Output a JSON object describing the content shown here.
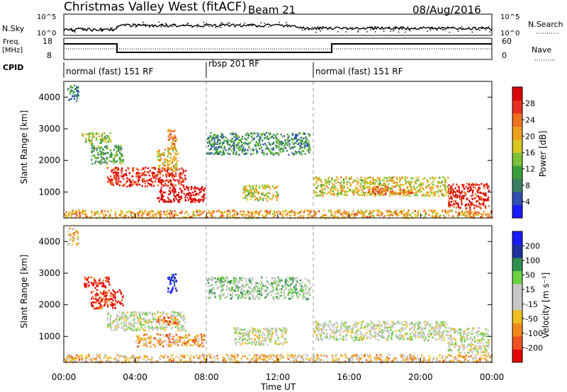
{
  "header": {
    "title": "Christmas Valley West (fitACF)",
    "beam": "Beam 21",
    "date": "08/Aug/2016"
  },
  "strip": {
    "nsky_label": "N.Sky",
    "nsky_top_tick": "10^5",
    "nsky_bottom_tick": "10^0",
    "nsearch_label": "N.Search",
    "right_top_tick": "10^5",
    "right_bottom_tick": "10^0",
    "freq_label": "Freq.",
    "freq_unit": "[MHz]",
    "freq_ticks": [
      "18",
      "8"
    ],
    "nave_label": "Nave",
    "nave_ticks": [
      "60",
      "0"
    ],
    "cpid_label": "CPID",
    "cpid_segments": [
      {
        "label": "normal (fast) 151 RF",
        "start_h": 0,
        "end_h": 8
      },
      {
        "label": "rbsp 201 RF",
        "start_h": 8,
        "end_h": 14
      },
      {
        "label": "normal (fast) 151 RF",
        "start_h": 14,
        "end_h": 24
      }
    ]
  },
  "chart_data": [
    {
      "type": "heatmap",
      "parameter": "Power",
      "ylabel": "Slant Range [km]",
      "yticks": [
        1000,
        2000,
        3000,
        4000
      ],
      "ylim": [
        180,
        4500
      ],
      "xlim_hours": [
        0,
        24
      ],
      "colorbar_label": "Power [dB]",
      "colorbar_ticks": [
        "4",
        "8",
        "12",
        "16",
        "20",
        "24",
        "28"
      ],
      "colorbar_colors": [
        "#1a1aff",
        "#2f4fb0",
        "#3a7f62",
        "#3a9f3a",
        "#7ec23a",
        "#d8c81f",
        "#f0a020",
        "#f07020",
        "#e83020",
        "#d80000"
      ],
      "regions": [
        {
          "x0": 0.2,
          "x1": 0.8,
          "y0": 3900,
          "y1": 4450,
          "level": 0.25
        },
        {
          "x0": 1.0,
          "x1": 2.6,
          "y0": 2550,
          "y1": 2900,
          "level": 0.45
        },
        {
          "x0": 1.5,
          "x1": 3.3,
          "y0": 1900,
          "y1": 2500,
          "level": 0.35
        },
        {
          "x0": 2.4,
          "x1": 6.8,
          "y0": 1200,
          "y1": 1800,
          "level": 0.9
        },
        {
          "x0": 5.2,
          "x1": 6.4,
          "y0": 1700,
          "y1": 2400,
          "level": 0.6
        },
        {
          "x0": 5.8,
          "x1": 6.3,
          "y0": 2400,
          "y1": 3000,
          "level": 0.7
        },
        {
          "x0": 5.2,
          "x1": 7.9,
          "y0": 700,
          "y1": 1200,
          "level": 1.0
        },
        {
          "x0": 0.0,
          "x1": 24.0,
          "y0": 200,
          "y1": 450,
          "level": 0.65
        },
        {
          "x0": 8.0,
          "x1": 13.8,
          "y0": 2200,
          "y1": 2900,
          "level": 0.3
        },
        {
          "x0": 10.0,
          "x1": 12.0,
          "y0": 750,
          "y1": 1250,
          "level": 0.55
        },
        {
          "x0": 14.0,
          "x1": 21.5,
          "y0": 900,
          "y1": 1500,
          "level": 0.55
        },
        {
          "x0": 17.0,
          "x1": 19.5,
          "y0": 950,
          "y1": 1200,
          "level": 0.75
        },
        {
          "x0": 21.5,
          "x1": 23.8,
          "y0": 500,
          "y1": 1300,
          "level": 0.9
        }
      ]
    },
    {
      "type": "heatmap",
      "parameter": "Velocity",
      "ylabel": "Slant Range [km]",
      "yticks": [
        1000,
        2000,
        3000,
        4000
      ],
      "ylim": [
        180,
        4500
      ],
      "xlim_hours": [
        0,
        24
      ],
      "xtick_labels": [
        "00:00",
        "04:00",
        "08:00",
        "12:00",
        "16:00",
        "20:00",
        "00:00"
      ],
      "xlabel": "Time UT",
      "colorbar_label": "Velocity [m s⁻¹]",
      "colorbar_ticks": [
        "-200",
        "-100",
        "-50",
        "-15",
        "15",
        "50",
        "100",
        "200"
      ],
      "colorbar_colors": [
        "#e80000",
        "#f05020",
        "#f08a1a",
        "#f0c020",
        "#c8c8c8",
        "#c8c8c8",
        "#6ad040",
        "#2f8f50",
        "#2030a0",
        "#1a1aff"
      ],
      "regions": [
        {
          "x0": 0.2,
          "x1": 0.8,
          "y0": 3900,
          "y1": 4450,
          "level": 0.35
        },
        {
          "x0": 1.0,
          "x1": 2.6,
          "y0": 2550,
          "y1": 2900,
          "level": 0.05
        },
        {
          "x0": 1.5,
          "x1": 3.3,
          "y0": 1900,
          "y1": 2500,
          "level": 0.1
        },
        {
          "x0": 2.4,
          "x1": 6.8,
          "y0": 1200,
          "y1": 1800,
          "level": 0.5
        },
        {
          "x0": 5.2,
          "x1": 6.4,
          "y0": 1400,
          "y1": 1650,
          "level": 0.25
        },
        {
          "x0": 5.8,
          "x1": 6.3,
          "y0": 2400,
          "y1": 3000,
          "level": 0.95
        },
        {
          "x0": 4.0,
          "x1": 7.9,
          "y0": 700,
          "y1": 1100,
          "level": 0.3
        },
        {
          "x0": 0.0,
          "x1": 24.0,
          "y0": 200,
          "y1": 450,
          "level": 0.35
        },
        {
          "x0": 8.0,
          "x1": 13.8,
          "y0": 2200,
          "y1": 2900,
          "level": 0.6
        },
        {
          "x0": 9.5,
          "x1": 12.5,
          "y0": 750,
          "y1": 1300,
          "level": 0.5
        },
        {
          "x0": 14.0,
          "x1": 21.5,
          "y0": 900,
          "y1": 1500,
          "level": 0.52
        },
        {
          "x0": 21.5,
          "x1": 23.8,
          "y0": 500,
          "y1": 1300,
          "level": 0.5
        }
      ]
    }
  ]
}
